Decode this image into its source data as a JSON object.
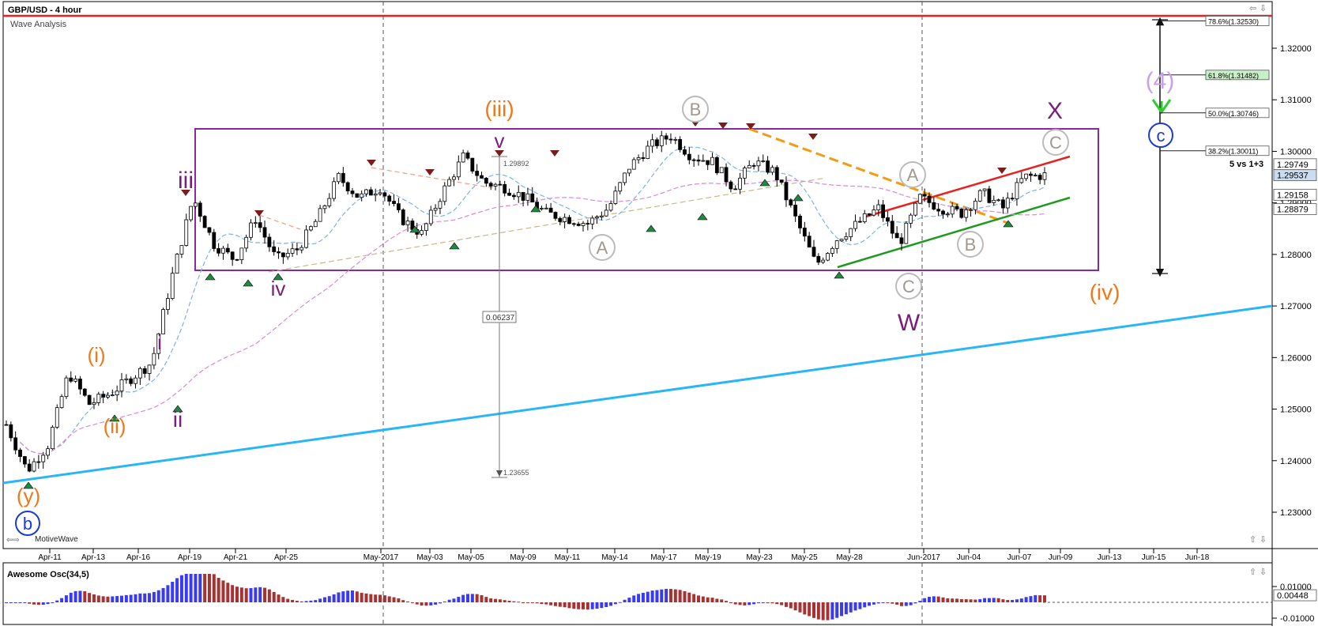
{
  "header": {
    "symbol_title": "GBP/USD - 4 hour",
    "study_name": "Wave Analysis",
    "brand": "MotiveWave"
  },
  "price_axis": {
    "ticks": [
      "1.32000",
      "1.31000",
      "1.30000",
      "1.29000",
      "1.28000",
      "1.27000",
      "1.26000",
      "1.25000",
      "1.24000",
      "1.23000"
    ],
    "tick_values": [
      1.32,
      1.31,
      1.3,
      1.29,
      1.28,
      1.27,
      1.26,
      1.25,
      1.24,
      1.23
    ],
    "badges": [
      {
        "label": "1.29749",
        "value": 1.29749,
        "bg": "#ffffff"
      },
      {
        "label": "1.29537",
        "value": 1.29537,
        "bg": "#c9dcf2"
      },
      {
        "label": "1.29158",
        "value": 1.29158,
        "bg": "#ffffff"
      },
      {
        "label": "1.28879",
        "value": 1.28879,
        "bg": "#ffffff"
      }
    ]
  },
  "time_axis": {
    "labels": [
      "Apr-11",
      "Apr-13",
      "Apr-16",
      "Apr-19",
      "Apr-21",
      "Apr-25",
      "May-2017",
      "May-03",
      "May-05",
      "May-09",
      "May-11",
      "May-14",
      "May-17",
      "May-19",
      "May-23",
      "May-25",
      "May-28",
      "Jun-2017",
      "Jun-04",
      "Jun-07",
      "Jun-09",
      "Jun-13",
      "Jun-15",
      "Jun-18"
    ]
  },
  "fibonacci": {
    "levels": [
      {
        "label": "78.6%(1.32530)",
        "value": 1.3253,
        "bg": "#ffffff"
      },
      {
        "label": "61.8%(1.31482)",
        "value": 1.31482,
        "bg": "#c8f0c8"
      },
      {
        "label": "50.0%(1.30746)",
        "value": 1.30746,
        "bg": "#ffffff"
      },
      {
        "label": "38.2%(1.30011)",
        "value": 1.30011,
        "bg": "#ffffff"
      }
    ],
    "note": "5 vs 1+3"
  },
  "annotations": {
    "peak_price": "1.29892",
    "range_height": "0.06237",
    "projection_target": "1.23655"
  },
  "wave_labels": [
    {
      "text": "iii",
      "color": "#7b1e7b"
    },
    {
      "text": "iv",
      "color": "#7b1e7b"
    },
    {
      "text": "v",
      "color": "#7b1e7b"
    },
    {
      "text": "i",
      "color": "#7b1e7b"
    },
    {
      "text": "ii",
      "color": "#7b1e7b"
    },
    {
      "text": "W",
      "color": "#7b1e7b"
    },
    {
      "text": "X",
      "color": "#7b1e7b"
    },
    {
      "text": "(iii)",
      "color": "#f07818"
    },
    {
      "text": "(i)",
      "color": "#f07818"
    },
    {
      "text": "(ii)",
      "color": "#f07818"
    },
    {
      "text": "(y)",
      "color": "#f07818"
    },
    {
      "text": "(iv)",
      "color": "#f07818"
    },
    {
      "text": "(4)",
      "color": "#c8a0e8"
    }
  ],
  "circle_labels": [
    "B",
    "A",
    "A",
    "C",
    "B",
    "C"
  ],
  "blue_circle_labels": [
    "b",
    "c"
  ],
  "oscillator": {
    "title": "Awesome Osc(34,5)",
    "ticks": [
      "0.01000",
      "-0.01000"
    ],
    "badge": "0.00448",
    "badge_value": 0.00448
  },
  "colors": {
    "up_bar": "#3a3af0",
    "down_bar": "#a83232",
    "trendline_cyan": "#29b6f6",
    "resistance_red": "#e82020",
    "box_purple": "#8a2a9a",
    "channel_green": "#1f9a1f",
    "dashed_orange": "#f39c12"
  },
  "chart_data": {
    "type": "candlestick",
    "title": "GBP/USD - 4 hour",
    "ylim": [
      1.222,
      1.3285
    ],
    "grid": false,
    "levels": {
      "red_resistance": 1.3265,
      "box_top": 1.3045,
      "box_bottom": 1.2772
    },
    "price_path": [
      [
        "Apr-10",
        1.247
      ],
      [
        "Apr-11",
        1.238
      ],
      [
        "Apr-12",
        1.243
      ],
      [
        "Apr-13",
        1.257
      ],
      [
        "Apr-14",
        1.251
      ],
      [
        "Apr-16",
        1.253
      ],
      [
        "Apr-17",
        1.256
      ],
      [
        "Apr-18",
        1.259
      ],
      [
        "Apr-19",
        1.276
      ],
      [
        "Apr-19",
        1.291
      ],
      [
        "Apr-20",
        1.282
      ],
      [
        "Apr-21",
        1.279
      ],
      [
        "Apr-22",
        1.287
      ],
      [
        "Apr-24",
        1.279
      ],
      [
        "Apr-25",
        1.281
      ],
      [
        "Apr-27",
        1.287
      ],
      [
        "Apr-28",
        1.295
      ],
      [
        "May-01",
        1.291
      ],
      [
        "May-02",
        1.293
      ],
      [
        "May-03",
        1.287
      ],
      [
        "May-04",
        1.284
      ],
      [
        "May-05",
        1.292
      ],
      [
        "May-07",
        1.2989
      ],
      [
        "May-08",
        1.294
      ],
      [
        "May-09",
        1.293
      ],
      [
        "May-10",
        1.291
      ],
      [
        "May-11",
        1.288
      ],
      [
        "May-12",
        1.287
      ],
      [
        "May-14",
        1.286
      ],
      [
        "May-16",
        1.289
      ],
      [
        "May-17",
        1.297
      ],
      [
        "May-18",
        1.301
      ],
      [
        "May-19",
        1.303
      ],
      [
        "May-21",
        1.299
      ],
      [
        "May-22",
        1.298
      ],
      [
        "May-23",
        1.293
      ],
      [
        "May-24",
        1.298
      ],
      [
        "May-25",
        1.296
      ],
      [
        "May-26",
        1.287
      ],
      [
        "May-27",
        1.278
      ],
      [
        "May-29",
        1.283
      ],
      [
        "May-30",
        1.286
      ],
      [
        "May-31",
        1.289
      ],
      [
        "Jun-01",
        1.282
      ],
      [
        "Jun-02",
        1.291
      ],
      [
        "Jun-03",
        1.289
      ],
      [
        "Jun-05",
        1.288
      ],
      [
        "Jun-06",
        1.292
      ],
      [
        "Jun-07",
        1.289
      ],
      [
        "Jun-08",
        1.295
      ],
      [
        "Jun-09",
        1.2954
      ]
    ]
  }
}
